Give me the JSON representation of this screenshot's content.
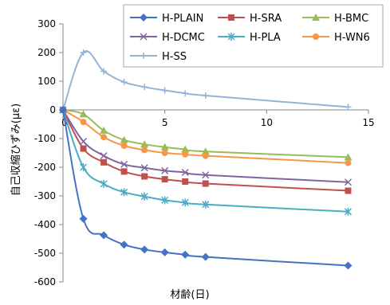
{
  "chart_data": {
    "type": "line",
    "xlabel": "材齢(日)",
    "ylabel": "自己収縮ひずみ(με)",
    "xlim": [
      0,
      15
    ],
    "ylim": [
      -600,
      300
    ],
    "xticks": [
      "0",
      "5",
      "10",
      "15"
    ],
    "yticks": [
      "300",
      "200",
      "100",
      "0",
      "-100",
      "-200",
      "-300",
      "-400",
      "-500",
      "-600"
    ],
    "grid": false,
    "legend_position": "top-right",
    "series": [
      {
        "name": "H-PLAIN",
        "color": "#4472C4",
        "marker": "diamond",
        "x": [
          0,
          1,
          2,
          3,
          4,
          5,
          6,
          7,
          14
        ],
        "y": [
          0,
          -380,
          -437,
          -470,
          -487,
          -497,
          -505,
          -513,
          -543
        ]
      },
      {
        "name": "H-SRA",
        "color": "#C0504D",
        "marker": "square",
        "x": [
          0,
          1,
          2,
          3,
          4,
          5,
          6,
          7,
          14
        ],
        "y": [
          0,
          -135,
          -183,
          -215,
          -232,
          -242,
          -250,
          -257,
          -282
        ]
      },
      {
        "name": "H-BMC",
        "color": "#9BBB59",
        "marker": "triangle",
        "x": [
          0,
          1,
          2,
          3,
          4,
          5,
          6,
          7,
          14
        ],
        "y": [
          0,
          -15,
          -72,
          -105,
          -120,
          -130,
          -138,
          -145,
          -165
        ]
      },
      {
        "name": "H-DCMC",
        "color": "#8064A2",
        "marker": "x",
        "x": [
          0,
          1,
          2,
          3,
          4,
          5,
          6,
          7,
          14
        ],
        "y": [
          0,
          -110,
          -160,
          -190,
          -202,
          -212,
          -218,
          -227,
          -252
        ]
      },
      {
        "name": "H-PLA",
        "color": "#4BACC6",
        "marker": "asterisk",
        "x": [
          0,
          1,
          2,
          3,
          4,
          5,
          6,
          7,
          14
        ],
        "y": [
          0,
          -200,
          -258,
          -287,
          -302,
          -315,
          -323,
          -330,
          -355
        ]
      },
      {
        "name": "H-WN6",
        "color": "#F79646",
        "marker": "circle",
        "x": [
          0,
          1,
          2,
          3,
          4,
          5,
          6,
          7,
          14
        ],
        "y": [
          0,
          -42,
          -95,
          -125,
          -140,
          -150,
          -155,
          -160,
          -185
        ]
      },
      {
        "name": "H-SS",
        "color": "#95B3D7",
        "marker": "plus",
        "x": [
          0,
          1,
          2,
          3,
          4,
          5,
          6,
          7,
          14
        ],
        "y": [
          0,
          200,
          135,
          97,
          80,
          68,
          58,
          50,
          10
        ]
      }
    ]
  }
}
